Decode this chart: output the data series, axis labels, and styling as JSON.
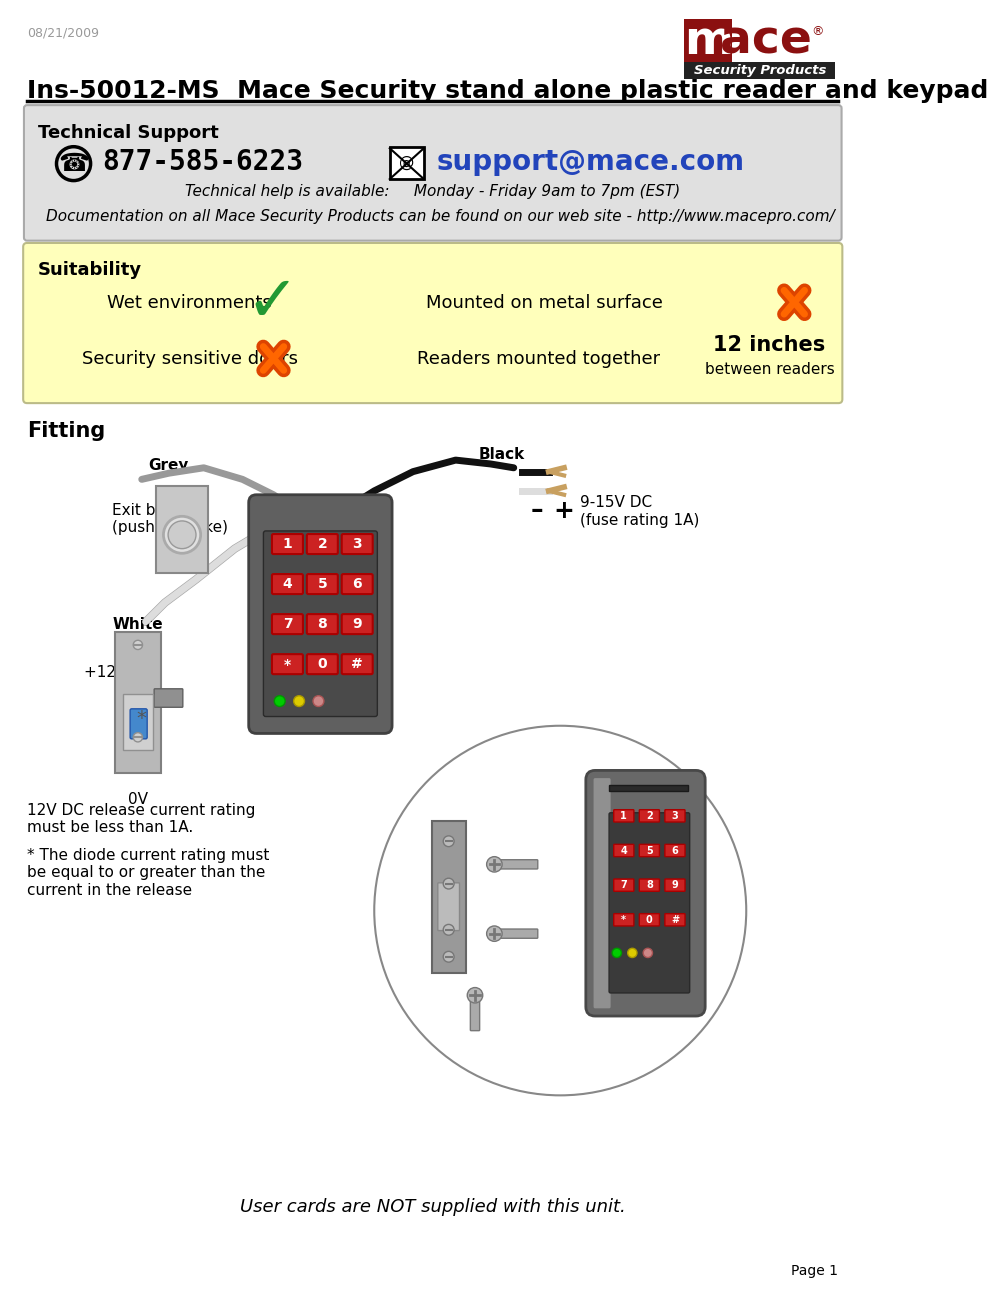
{
  "date": "08/21/2009",
  "title": "Ins-50012-MS  Mace Security stand alone plastic reader and keypad",
  "tech_support_title": "Technical Support",
  "tech_support_bg": "#e0e0e0",
  "phone": "877-585-6223",
  "email": "support@mace.com",
  "email_color": "#2244bb",
  "tech_help_line1": "Technical help is available:     Monday - Friday 9am to 7pm (EST)",
  "doc_line": "Documentation on all Mace Security Products can be found on our web site - http://www.macepro.com/",
  "suitability_title": "Suitability",
  "suitability_bg": "#ffffbb",
  "fitting_title": "Fitting",
  "exit_btn_label": "Exit button\n(push to make)",
  "grey_label": "Grey",
  "black_label": "Black",
  "white_label": "White",
  "plus12v_label": "+12V DC",
  "ov_label": "0V",
  "dc_label": "9-15V DC\n(fuse rating 1A)",
  "note1": "12V DC release current rating\nmust be less than 1A.",
  "note2": "* The diode current rating must\nbe equal to or greater than the\ncurrent in the release",
  "user_cards": "User cards are NOT supplied with this unit.",
  "page": "Page 1",
  "mace_red": "#8b1010",
  "mace_logo_text": "Security Products",
  "keypad_color": "#606060",
  "keypad_dark": "#404040",
  "btn_red": "#cc2222",
  "btn_dark_red": "#aa0000",
  "btn_labels": [
    [
      "1",
      "2",
      "3"
    ],
    [
      "4",
      "5",
      "6"
    ],
    [
      "7",
      "8",
      "9"
    ],
    [
      "*",
      "0",
      "#"
    ]
  ],
  "wire_grey": "#999999",
  "wire_black": "#111111",
  "wire_white": "#dddddd",
  "lock_silver": "#b0b0b0",
  "lock_dark": "#808080"
}
